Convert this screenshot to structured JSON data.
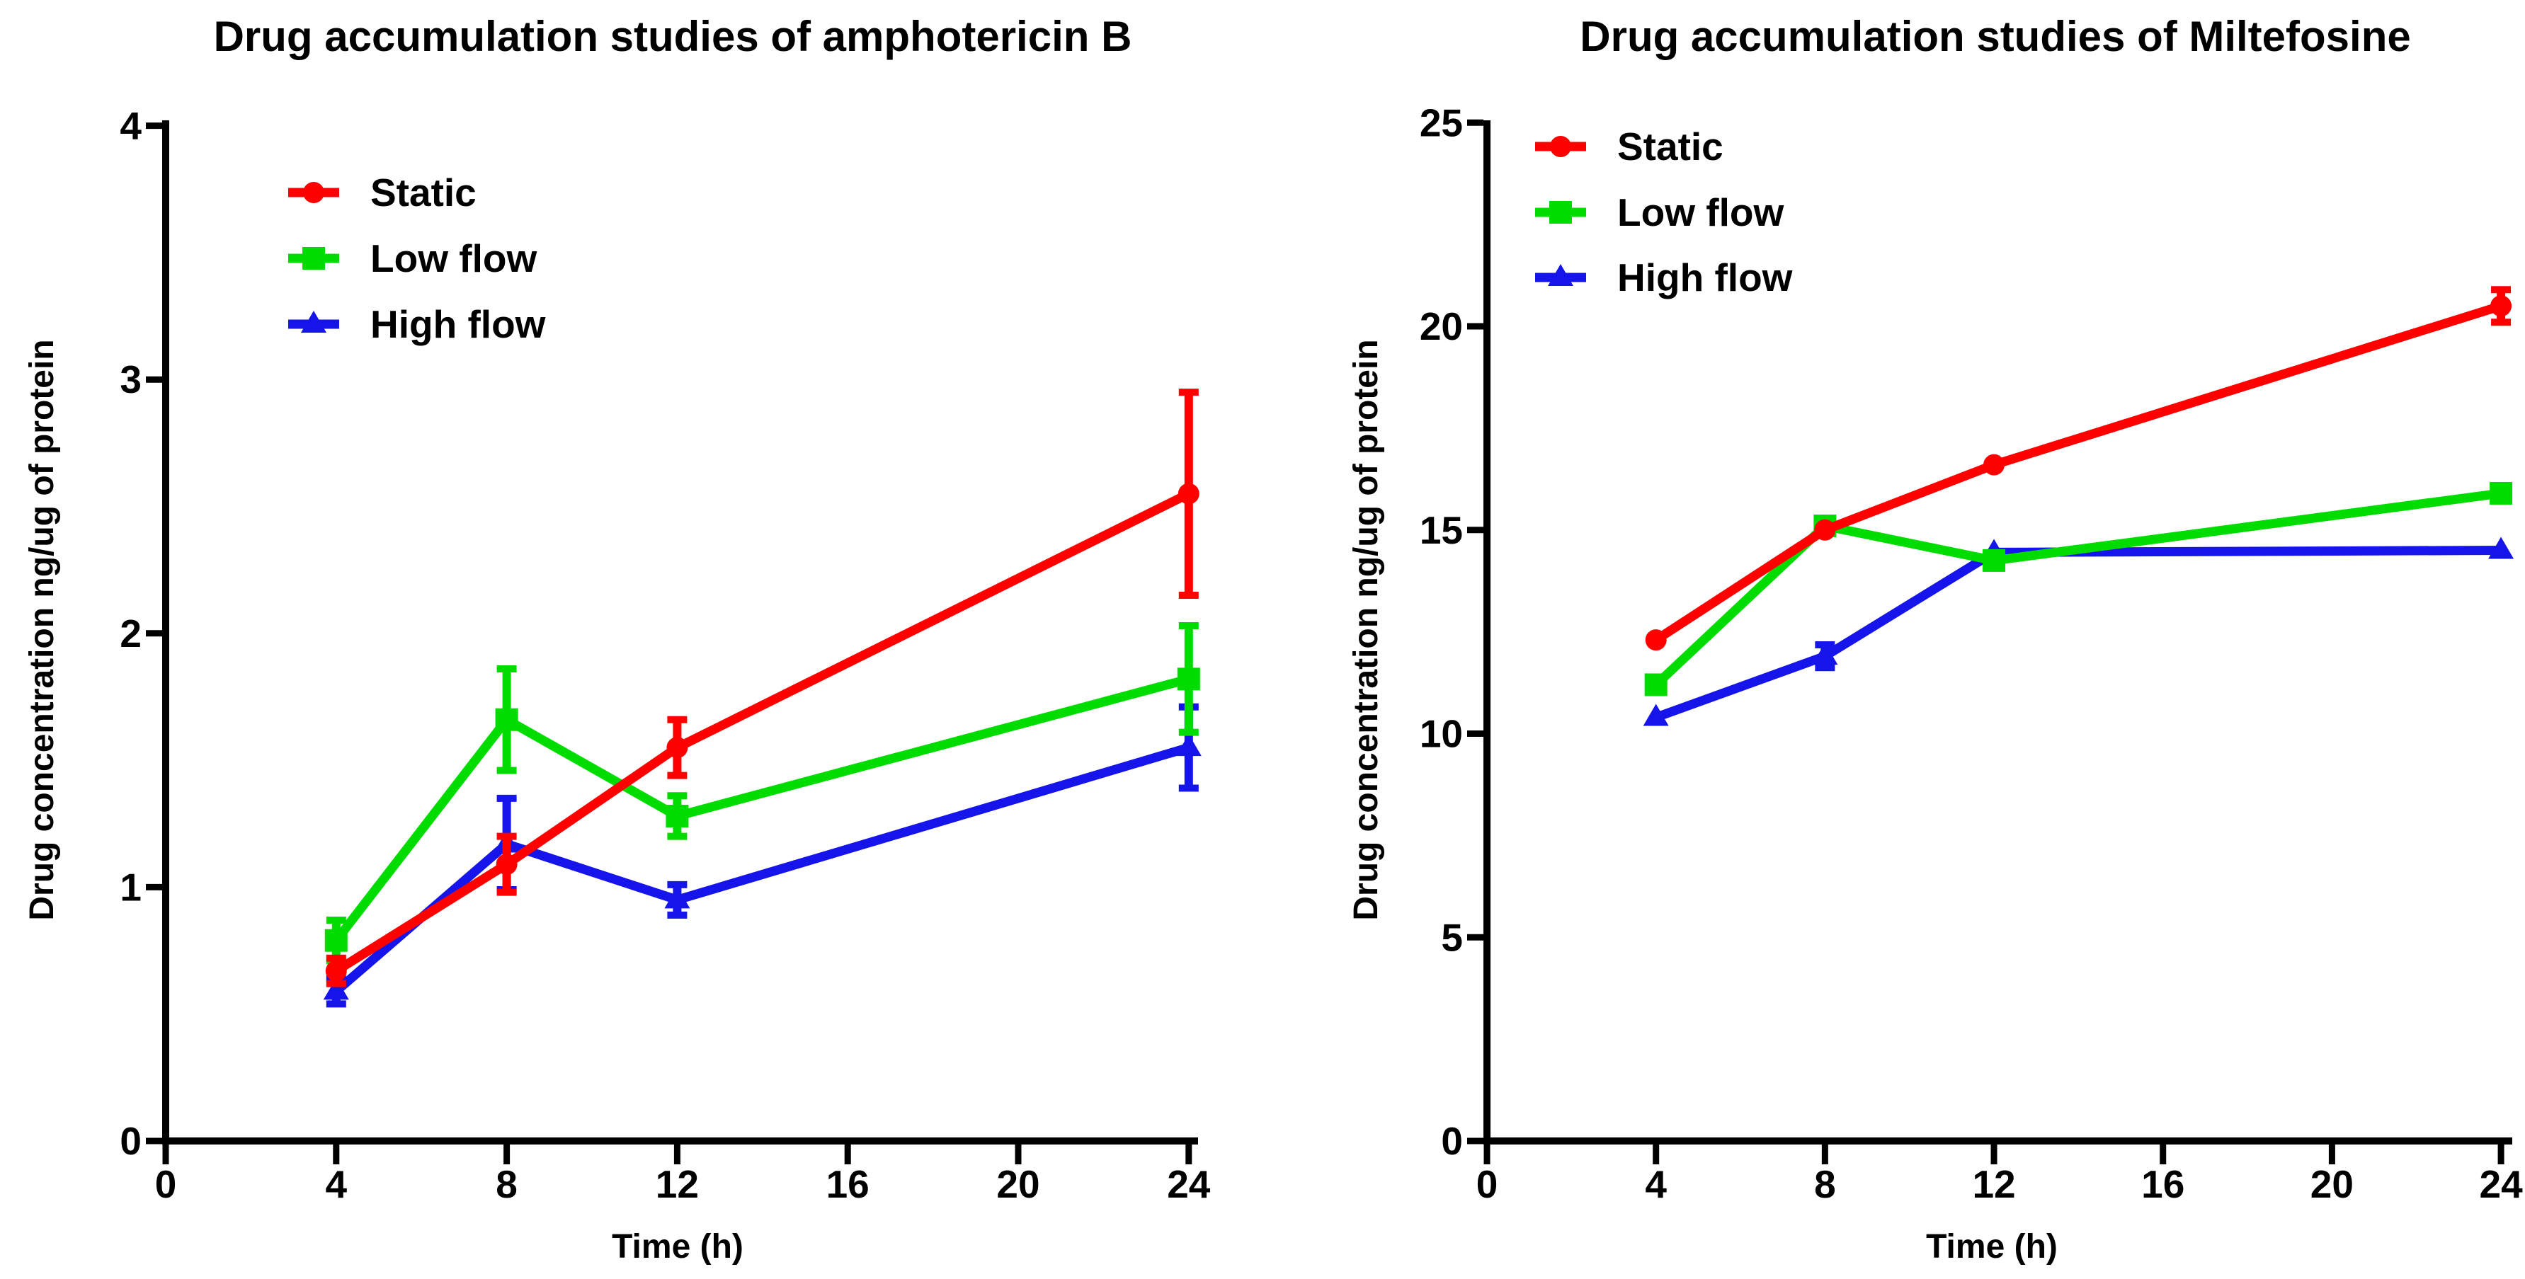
{
  "figure": {
    "background_color": "#ffffff",
    "text_color": "#000000"
  },
  "chart_data": [
    {
      "type": "line",
      "title": "Drug accumulation studies of amphotericin B",
      "xlabel": "Time (h)",
      "ylabel": "Drug concentration ng/ug of protein",
      "x": [
        4,
        8,
        12,
        24
      ],
      "xticks": [
        0,
        4,
        8,
        12,
        16,
        20,
        24
      ],
      "yticks": [
        0,
        1,
        2,
        3,
        4
      ],
      "xlim": [
        0,
        24
      ],
      "ylim": [
        0,
        4
      ],
      "grid": false,
      "legend_position": "inside-top-left",
      "series": [
        {
          "name": "Static",
          "color": "#FF0000",
          "marker": "circle",
          "values": [
            0.67,
            1.09,
            1.55,
            2.55
          ],
          "errors": [
            0.05,
            0.11,
            0.11,
            0.4
          ]
        },
        {
          "name": "Low flow",
          "color": "#00DC00",
          "marker": "square",
          "values": [
            0.79,
            1.66,
            1.28,
            1.82
          ],
          "errors": [
            0.08,
            0.2,
            0.08,
            0.21
          ]
        },
        {
          "name": "High flow",
          "color": "#1414EB",
          "marker": "triangle",
          "values": [
            0.59,
            1.17,
            0.95,
            1.55
          ],
          "errors": [
            0.05,
            0.18,
            0.06,
            0.16
          ]
        }
      ]
    },
    {
      "type": "line",
      "title": "Drug accumulation studies of Miltefosine",
      "xlabel": "Time (h)",
      "ylabel": "Drug concentration ng/ug of protein",
      "x": [
        4,
        8,
        12,
        24
      ],
      "xticks": [
        0,
        4,
        8,
        12,
        16,
        20,
        24
      ],
      "yticks": [
        0,
        5,
        10,
        15,
        20,
        25
      ],
      "xlim": [
        0,
        24
      ],
      "ylim": [
        0,
        25
      ],
      "grid": false,
      "legend_position": "inside-top-left",
      "series": [
        {
          "name": "Static",
          "color": "#FF0000",
          "marker": "circle",
          "values": [
            12.3,
            15.0,
            16.6,
            20.5
          ],
          "errors": [
            0,
            0,
            0,
            0.4
          ]
        },
        {
          "name": "Low flow",
          "color": "#00DC00",
          "marker": "square",
          "values": [
            11.2,
            15.1,
            14.25,
            15.9
          ],
          "errors": [
            0,
            0,
            0,
            0
          ]
        },
        {
          "name": "High flow",
          "color": "#1414EB",
          "marker": "triangle",
          "values": [
            10.4,
            11.9,
            14.45,
            14.5
          ],
          "errors": [
            0,
            0.28,
            0,
            0
          ]
        }
      ]
    }
  ]
}
